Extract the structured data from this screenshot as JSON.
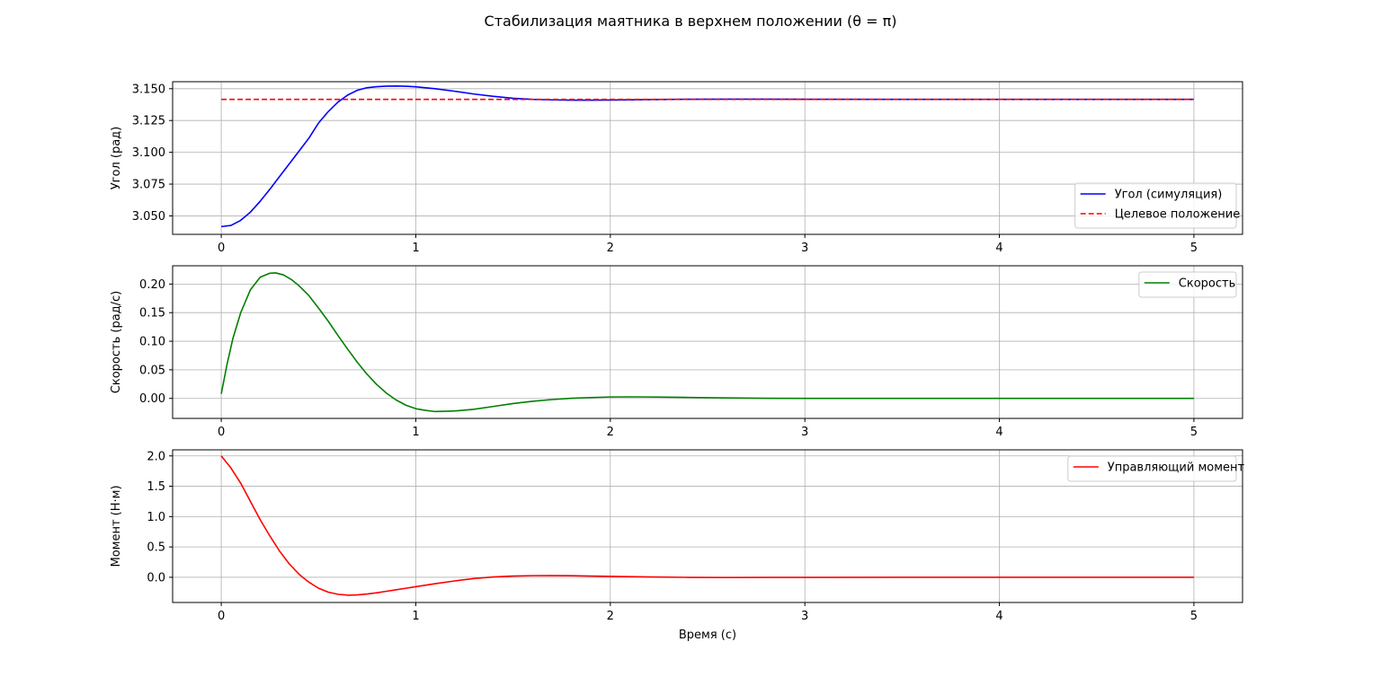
{
  "figure": {
    "title": "Стабилизация маятника в верхнем положении (θ = π)"
  },
  "chart_data": [
    {
      "type": "line",
      "ylabel": "Угол (рад)",
      "xlabel": "",
      "xlim": [
        -0.25,
        5.25
      ],
      "ylim": [
        3.0355,
        3.1555
      ],
      "xticks": [
        0,
        1,
        2,
        3,
        4,
        5
      ],
      "xtick_labels": [
        "0",
        "1",
        "2",
        "3",
        "4",
        "5"
      ],
      "yticks": [
        3.05,
        3.075,
        3.1,
        3.125,
        3.15
      ],
      "ytick_labels": [
        "3.050",
        "3.075",
        "3.100",
        "3.125",
        "3.150"
      ],
      "grid": true,
      "legend_position": "lower-right",
      "series": [
        {
          "name": "Угол (симуляция)",
          "color": "#0000ff",
          "style": "solid",
          "x": [
            0,
            0.05,
            0.1,
            0.15,
            0.2,
            0.25,
            0.3,
            0.35,
            0.4,
            0.45,
            0.5,
            0.55,
            0.6,
            0.65,
            0.7,
            0.75,
            0.8,
            0.85,
            0.9,
            0.95,
            1.0,
            1.1,
            1.2,
            1.3,
            1.4,
            1.5,
            1.6,
            1.7,
            1.8,
            1.9,
            2.0,
            2.2,
            2.4,
            2.6,
            2.8,
            3.0,
            3.5,
            4.0,
            4.5,
            5.0
          ],
          "values": [
            3.0416,
            3.0425,
            3.0465,
            3.053,
            3.0615,
            3.071,
            3.081,
            3.091,
            3.101,
            3.111,
            3.123,
            3.132,
            3.1395,
            3.145,
            3.1488,
            3.1508,
            3.1516,
            3.152,
            3.1521,
            3.1519,
            3.1515,
            3.15,
            3.148,
            3.1458,
            3.144,
            3.1425,
            3.1416,
            3.1412,
            3.141,
            3.141,
            3.1411,
            3.1414,
            3.1417,
            3.1418,
            3.1418,
            3.1417,
            3.1416,
            3.1416,
            3.1416,
            3.1416
          ]
        },
        {
          "name": "Целевое положение",
          "color": "#ff0000",
          "style": "dashed",
          "x": [
            0,
            5
          ],
          "values": [
            3.1416,
            3.1416
          ]
        }
      ]
    },
    {
      "type": "line",
      "ylabel": "Скорость (рад/с)",
      "xlabel": "",
      "xlim": [
        -0.25,
        5.25
      ],
      "ylim": [
        -0.035,
        0.232
      ],
      "xticks": [
        0,
        1,
        2,
        3,
        4,
        5
      ],
      "xtick_labels": [
        "0",
        "1",
        "2",
        "3",
        "4",
        "5"
      ],
      "yticks": [
        0.0,
        0.05,
        0.1,
        0.15,
        0.2
      ],
      "ytick_labels": [
        "0.00",
        "0.05",
        "0.10",
        "0.15",
        "0.20"
      ],
      "grid": true,
      "legend_position": "upper-right",
      "series": [
        {
          "name": "Скорость",
          "color": "#008000",
          "style": "solid",
          "x": [
            0,
            0.03,
            0.06,
            0.1,
            0.15,
            0.2,
            0.25,
            0.28,
            0.32,
            0.36,
            0.4,
            0.45,
            0.5,
            0.55,
            0.6,
            0.65,
            0.7,
            0.75,
            0.8,
            0.85,
            0.9,
            0.95,
            1.0,
            1.05,
            1.1,
            1.15,
            1.2,
            1.3,
            1.4,
            1.5,
            1.6,
            1.7,
            1.8,
            1.9,
            2.0,
            2.1,
            2.2,
            2.4,
            2.6,
            2.8,
            3.0,
            3.5,
            4.0,
            4.5,
            5.0
          ],
          "values": [
            0.008,
            0.06,
            0.105,
            0.15,
            0.19,
            0.212,
            0.219,
            0.2195,
            0.216,
            0.208,
            0.197,
            0.18,
            0.158,
            0.135,
            0.11,
            0.086,
            0.063,
            0.042,
            0.024,
            0.009,
            -0.003,
            -0.012,
            -0.018,
            -0.021,
            -0.023,
            -0.0225,
            -0.022,
            -0.019,
            -0.014,
            -0.009,
            -0.005,
            -0.002,
            0.0003,
            0.0015,
            0.0025,
            0.0027,
            0.0025,
            0.0017,
            0.0008,
            0.0002,
            0.0,
            0.0,
            0.0,
            0.0,
            0.0
          ]
        }
      ]
    },
    {
      "type": "line",
      "ylabel": "Момент (Н·м)",
      "xlabel": "Время (с)",
      "xlim": [
        -0.25,
        5.25
      ],
      "ylim": [
        -0.415,
        2.1
      ],
      "xticks": [
        0,
        1,
        2,
        3,
        4,
        5
      ],
      "xtick_labels": [
        "0",
        "1",
        "2",
        "3",
        "4",
        "5"
      ],
      "yticks": [
        0.0,
        0.5,
        1.0,
        1.5,
        2.0
      ],
      "ytick_labels": [
        "0.0",
        "0.5",
        "1.0",
        "1.5",
        "2.0"
      ],
      "grid": true,
      "legend_position": "upper-right",
      "series": [
        {
          "name": "Управляющий момент",
          "color": "#ff0000",
          "style": "solid",
          "x": [
            0,
            0.05,
            0.1,
            0.15,
            0.2,
            0.25,
            0.3,
            0.35,
            0.4,
            0.45,
            0.5,
            0.55,
            0.6,
            0.65,
            0.7,
            0.75,
            0.8,
            0.85,
            0.9,
            0.95,
            1.0,
            1.1,
            1.2,
            1.3,
            1.4,
            1.5,
            1.6,
            1.7,
            1.8,
            1.9,
            2.0,
            2.2,
            2.4,
            2.6,
            2.8,
            3.0,
            3.5,
            4.0,
            4.5,
            5.0
          ],
          "values": [
            2.0,
            1.8,
            1.55,
            1.25,
            0.95,
            0.68,
            0.43,
            0.22,
            0.05,
            -0.08,
            -0.18,
            -0.245,
            -0.28,
            -0.295,
            -0.29,
            -0.275,
            -0.255,
            -0.23,
            -0.205,
            -0.18,
            -0.155,
            -0.105,
            -0.06,
            -0.02,
            0.005,
            0.02,
            0.027,
            0.028,
            0.026,
            0.021,
            0.015,
            0.005,
            -0.001,
            -0.003,
            -0.002,
            -0.001,
            0.0,
            0.0,
            0.0,
            0.0
          ]
        }
      ]
    }
  ]
}
